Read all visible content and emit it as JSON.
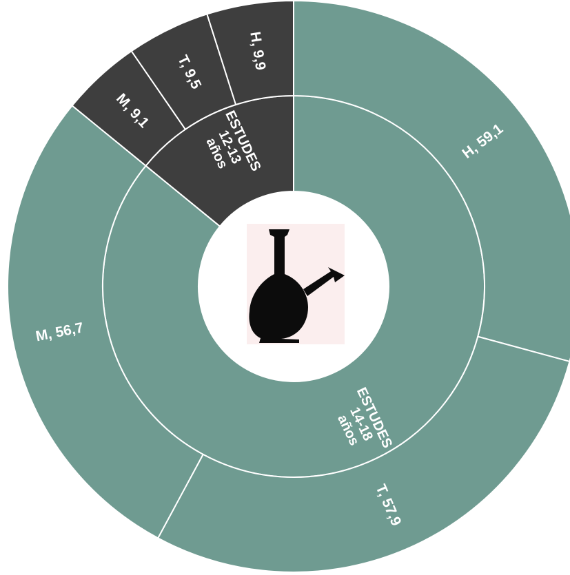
{
  "chart_data": {
    "type": "sunburst",
    "inner_ring": [
      {
        "name": "ESTUDES 12-13 años",
        "lines": [
          "ESTUDES",
          "12-13",
          "años"
        ],
        "color": "#3e3e3e"
      },
      {
        "name": "ESTUDES 14-18 años",
        "lines": [
          "ESTUDES",
          "14-18",
          "años"
        ],
        "color": "#6f9b91"
      }
    ],
    "outer_ring": [
      {
        "parent": "ESTUDES 12-13 años",
        "label": "H, 9,9",
        "value": 9.9,
        "color": "#3e3e3e"
      },
      {
        "parent": "ESTUDES 12-13 años",
        "label": "T, 9,5",
        "value": 9.5,
        "color": "#3e3e3e"
      },
      {
        "parent": "ESTUDES 12-13 años",
        "label": "M, 9,1",
        "value": 9.1,
        "color": "#3e3e3e"
      },
      {
        "parent": "ESTUDES 14-18 años",
        "label": "H, 59,1",
        "value": 59.1,
        "color": "#6f9b91"
      },
      {
        "parent": "ESTUDES 14-18 años",
        "label": "T, 57,9",
        "value": 57.9,
        "color": "#6f9b91"
      },
      {
        "parent": "ESTUDES 14-18 años",
        "label": "M, 56,7",
        "value": 56.7,
        "color": "#6f9b91"
      }
    ],
    "center_icon": "bong-icon",
    "start": "top",
    "direction": "clockwise-from-14-18"
  }
}
